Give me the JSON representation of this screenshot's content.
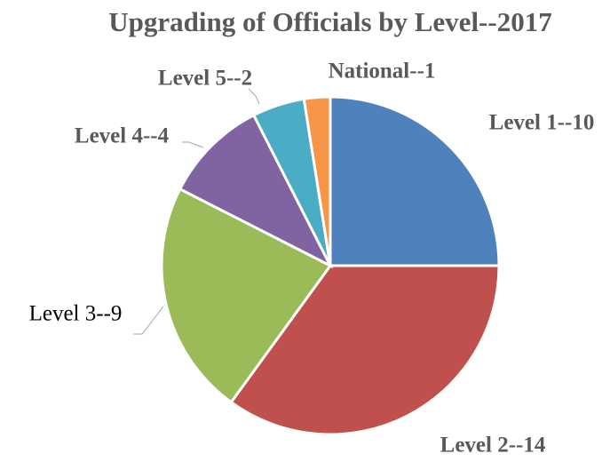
{
  "chart_data": {
    "type": "pie",
    "title": "Upgrading of Officials by Level--2017",
    "categories": [
      "Level 1--10",
      "Level 2--14",
      "Level 3--9",
      "Level 4--4",
      "Level 5--2",
      "National--1"
    ],
    "values": [
      10,
      14,
      9,
      4,
      2,
      1
    ],
    "colors": [
      "#4f81bd",
      "#c0504d",
      "#9bbb59",
      "#8064a2",
      "#4bacc6",
      "#f79646"
    ]
  }
}
